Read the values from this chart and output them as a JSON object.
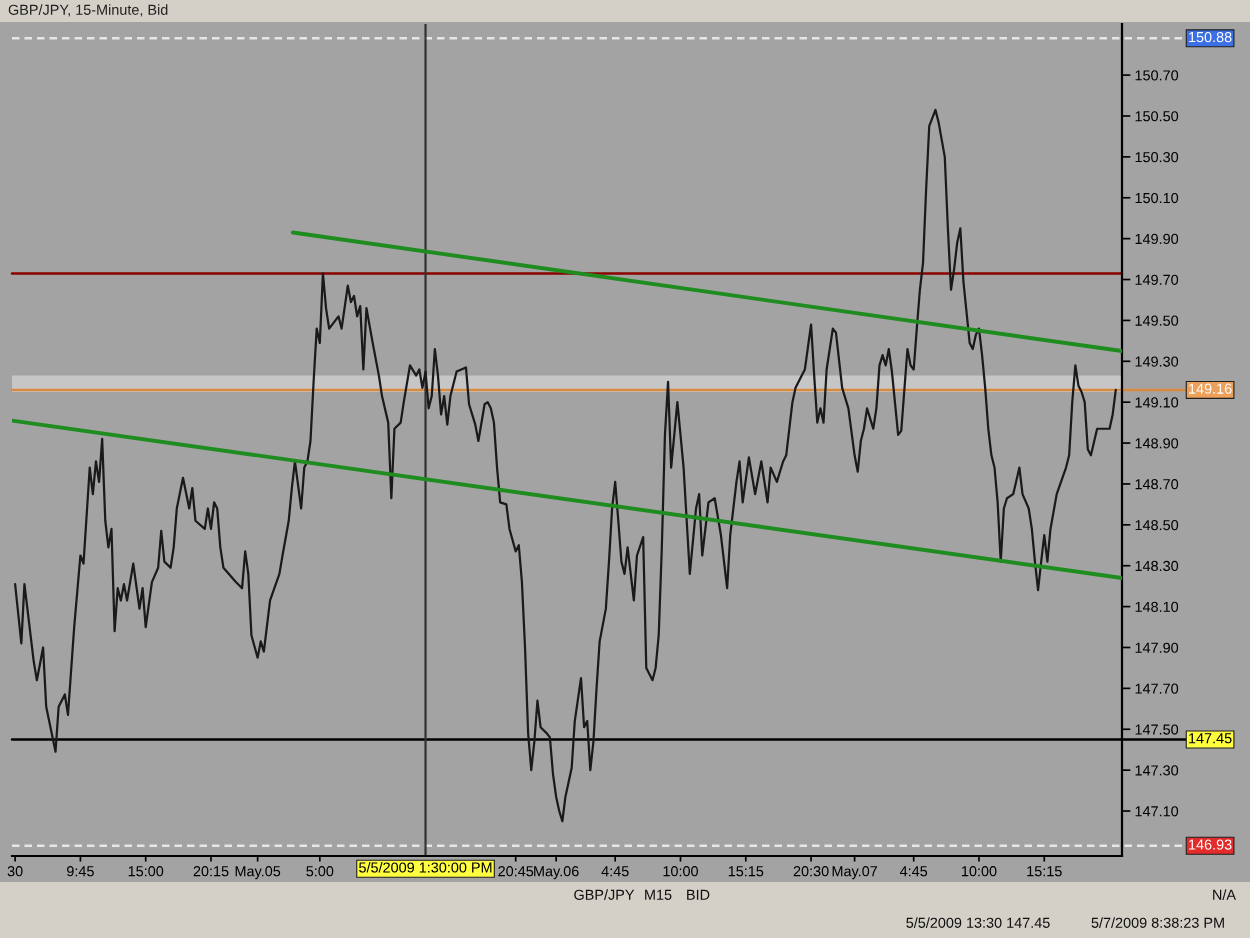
{
  "chart_data": {
    "type": "line",
    "title": "GBP/JPY, 15-Minute, Bid",
    "x": [
      "2009-05-04T04:30",
      "2009-05-04T05:00",
      "2009-05-04T05:15",
      "2009-05-04T06:00",
      "2009-05-04T06:15",
      "2009-05-04T06:45",
      "2009-05-04T07:00",
      "2009-05-04T07:45",
      "2009-05-04T08:00",
      "2009-05-04T08:30",
      "2009-05-04T08:45",
      "2009-05-04T09:15",
      "2009-05-04T09:45",
      "2009-05-04T10:00",
      "2009-05-04T10:30",
      "2009-05-04T10:45",
      "2009-05-04T11:00",
      "2009-05-04T11:15",
      "2009-05-04T11:30",
      "2009-05-04T11:45",
      "2009-05-04T12:00",
      "2009-05-04T12:15",
      "2009-05-04T12:30",
      "2009-05-04T12:45",
      "2009-05-04T13:00",
      "2009-05-04T13:15",
      "2009-05-04T13:30",
      "2009-05-04T14:00",
      "2009-05-04T14:30",
      "2009-05-04T14:45",
      "2009-05-04T15:00",
      "2009-05-04T15:30",
      "2009-05-04T16:00",
      "2009-05-04T16:15",
      "2009-05-04T16:30",
      "2009-05-04T17:00",
      "2009-05-04T17:15",
      "2009-05-04T17:30",
      "2009-05-04T18:00",
      "2009-05-04T18:30",
      "2009-05-04T18:45",
      "2009-05-04T19:00",
      "2009-05-04T19:45",
      "2009-05-04T20:00",
      "2009-05-04T20:15",
      "2009-05-04T20:30",
      "2009-05-04T20:45",
      "2009-05-04T21:00",
      "2009-05-04T21:15",
      "2009-05-04T22:15",
      "2009-05-04T22:45",
      "2009-05-04T23:00",
      "2009-05-04T23:15",
      "2009-05-04T23:30",
      "2009-05-05T00:00",
      "2009-05-05T00:15",
      "2009-05-05T00:30",
      "2009-05-05T01:00",
      "2009-05-05T01:45",
      "2009-05-05T02:00",
      "2009-05-05T02:30",
      "2009-05-05T02:45",
      "2009-05-05T03:00",
      "2009-05-05T03:30",
      "2009-05-05T03:45",
      "2009-05-05T04:00",
      "2009-05-05T04:15",
      "2009-05-05T04:30",
      "2009-05-05T04:45",
      "2009-05-05T05:00",
      "2009-05-05T05:15",
      "2009-05-05T05:30",
      "2009-05-05T05:45",
      "2009-05-05T06:30",
      "2009-05-05T06:45",
      "2009-05-05T07:15",
      "2009-05-05T07:30",
      "2009-05-05T07:45",
      "2009-05-05T08:00",
      "2009-05-05T08:15",
      "2009-05-05T08:30",
      "2009-05-05T08:45",
      "2009-05-05T09:15",
      "2009-05-05T09:45",
      "2009-05-05T10:00",
      "2009-05-05T10:30",
      "2009-05-05T10:45",
      "2009-05-05T11:00",
      "2009-05-05T11:30",
      "2009-05-05T11:45",
      "2009-05-05T12:15",
      "2009-05-05T12:45",
      "2009-05-05T13:00",
      "2009-05-05T13:15",
      "2009-05-05T13:30",
      "2009-05-05T13:45",
      "2009-05-05T14:00",
      "2009-05-05T14:15",
      "2009-05-05T14:30",
      "2009-05-05T14:45",
      "2009-05-05T15:00",
      "2009-05-05T15:15",
      "2009-05-05T15:30",
      "2009-05-05T16:00",
      "2009-05-05T16:45",
      "2009-05-05T17:00",
      "2009-05-05T17:30",
      "2009-05-05T17:45",
      "2009-05-05T18:15",
      "2009-05-05T18:30",
      "2009-05-05T18:45",
      "2009-05-05T19:00",
      "2009-05-05T19:15",
      "2009-05-05T19:30",
      "2009-05-05T20:00",
      "2009-05-05T20:15",
      "2009-05-05T20:45",
      "2009-05-05T21:00",
      "2009-05-05T21:15",
      "2009-05-05T21:30",
      "2009-05-05T21:45",
      "2009-05-05T22:00",
      "2009-05-05T22:15",
      "2009-05-05T22:30",
      "2009-05-05T22:45",
      "2009-05-05T23:15",
      "2009-05-05T23:30",
      "2009-05-05T23:45",
      "2009-05-06T00:00",
      "2009-05-06T00:15",
      "2009-05-06T00:30",
      "2009-05-06T00:45",
      "2009-05-06T01:15",
      "2009-05-06T01:30",
      "2009-05-06T02:00",
      "2009-05-06T02:15",
      "2009-05-06T02:30",
      "2009-05-06T02:45",
      "2009-05-06T03:00",
      "2009-05-06T03:15",
      "2009-05-06T03:30",
      "2009-05-06T04:00",
      "2009-05-06T04:15",
      "2009-05-06T04:30",
      "2009-05-06T04:45",
      "2009-05-06T05:00",
      "2009-05-06T05:15",
      "2009-05-06T05:30",
      "2009-05-06T05:45",
      "2009-05-06T06:15",
      "2009-05-06T06:30",
      "2009-05-06T07:00",
      "2009-05-06T07:15",
      "2009-05-06T07:45",
      "2009-05-06T08:00",
      "2009-05-06T08:15",
      "2009-05-06T08:30",
      "2009-05-06T08:45",
      "2009-05-06T09:00",
      "2009-05-06T09:15",
      "2009-05-06T09:45",
      "2009-05-06T10:15",
      "2009-05-06T10:45",
      "2009-05-06T11:15",
      "2009-05-06T11:30",
      "2009-05-06T11:45",
      "2009-05-06T12:15",
      "2009-05-06T12:45",
      "2009-05-06T13:15",
      "2009-05-06T13:45",
      "2009-05-06T14:00",
      "2009-05-06T14:30",
      "2009-05-06T14:45",
      "2009-05-06T15:00",
      "2009-05-06T15:30",
      "2009-05-06T16:00",
      "2009-05-06T16:30",
      "2009-05-06T17:00",
      "2009-05-06T17:15",
      "2009-05-06T17:45",
      "2009-05-06T18:15",
      "2009-05-06T18:30",
      "2009-05-06T19:00",
      "2009-05-06T19:15",
      "2009-05-06T19:45",
      "2009-05-06T20:00",
      "2009-05-06T20:30",
      "2009-05-06T20:45",
      "2009-05-06T21:00",
      "2009-05-06T21:15",
      "2009-05-06T21:30",
      "2009-05-06T21:45",
      "2009-05-06T22:15",
      "2009-05-06T22:30",
      "2009-05-06T23:00",
      "2009-05-06T23:30",
      "2009-05-07T00:00",
      "2009-05-07T00:15",
      "2009-05-07T00:30",
      "2009-05-07T00:45",
      "2009-05-07T01:00",
      "2009-05-07T01:30",
      "2009-05-07T01:45",
      "2009-05-07T02:00",
      "2009-05-07T02:15",
      "2009-05-07T02:30",
      "2009-05-07T02:45",
      "2009-05-07T03:00",
      "2009-05-07T03:30",
      "2009-05-07T03:45",
      "2009-05-07T04:15",
      "2009-05-07T04:30",
      "2009-05-07T04:45",
      "2009-05-07T05:00",
      "2009-05-07T05:15",
      "2009-05-07T05:30",
      "2009-05-07T05:45",
      "2009-05-07T06:00",
      "2009-05-07T06:30",
      "2009-05-07T06:45",
      "2009-05-07T07:15",
      "2009-05-07T07:30",
      "2009-05-07T07:45",
      "2009-05-07T08:00",
      "2009-05-07T08:15",
      "2009-05-07T08:30",
      "2009-05-07T08:45",
      "2009-05-07T09:00",
      "2009-05-07T09:15",
      "2009-05-07T09:30",
      "2009-05-07T09:45",
      "2009-05-07T10:00",
      "2009-05-07T10:15",
      "2009-05-07T10:30",
      "2009-05-07T10:45",
      "2009-05-07T11:00",
      "2009-05-07T11:15",
      "2009-05-07T11:30",
      "2009-05-07T11:45",
      "2009-05-07T12:00",
      "2009-05-07T12:15",
      "2009-05-07T12:45",
      "2009-05-07T13:15",
      "2009-05-07T13:30",
      "2009-05-07T14:00",
      "2009-05-07T14:15",
      "2009-05-07T14:30",
      "2009-05-07T14:45",
      "2009-05-07T15:00",
      "2009-05-07T15:15",
      "2009-05-07T15:30",
      "2009-05-07T15:45",
      "2009-05-07T16:15",
      "2009-05-07T17:00",
      "2009-05-07T17:15",
      "2009-05-07T17:30",
      "2009-05-07T17:45",
      "2009-05-07T18:00",
      "2009-05-07T18:15",
      "2009-05-07T18:30",
      "2009-05-07T18:45",
      "2009-05-07T19:00",
      "2009-05-07T19:30",
      "2009-05-07T20:15",
      "2009-05-07T20:30",
      "2009-05-07T20:45",
      "2009-05-07T21:00"
    ],
    "series": [
      {
        "color": "#1a1a1a",
        "values": [
          148.21,
          147.92,
          148.21,
          147.83,
          147.74,
          147.9,
          147.61,
          147.39,
          147.61,
          147.67,
          147.57,
          148.0,
          148.35,
          148.31,
          148.78,
          148.65,
          148.81,
          148.71,
          148.92,
          148.52,
          148.39,
          148.48,
          147.98,
          148.19,
          148.13,
          148.21,
          148.13,
          148.31,
          148.09,
          148.19,
          148.0,
          148.22,
          148.29,
          148.47,
          148.32,
          148.29,
          148.39,
          148.58,
          148.73,
          148.58,
          148.68,
          148.52,
          148.48,
          148.58,
          148.48,
          148.61,
          148.58,
          148.39,
          148.29,
          148.22,
          148.19,
          148.37,
          148.26,
          147.96,
          147.85,
          147.93,
          147.88,
          148.13,
          148.26,
          148.35,
          148.52,
          148.68,
          148.81,
          148.58,
          148.78,
          148.81,
          148.91,
          149.2,
          149.46,
          149.39,
          149.73,
          149.56,
          149.46,
          149.52,
          149.46,
          149.67,
          149.59,
          149.62,
          149.52,
          149.57,
          149.26,
          149.56,
          149.39,
          149.23,
          149.13,
          149.0,
          148.63,
          148.97,
          149.0,
          149.1,
          149.28,
          149.23,
          149.26,
          149.17,
          149.25,
          149.07,
          149.13,
          149.36,
          149.23,
          149.04,
          149.13,
          148.99,
          149.13,
          149.25,
          149.27,
          149.09,
          148.99,
          148.91,
          149.09,
          149.1,
          149.07,
          149.0,
          148.78,
          148.61,
          148.6,
          148.48,
          148.37,
          148.4,
          148.22,
          147.9,
          147.48,
          147.3,
          147.44,
          147.64,
          147.51,
          147.48,
          147.46,
          147.28,
          147.17,
          147.1,
          147.05,
          147.17,
          147.31,
          147.54,
          147.75,
          147.51,
          147.54,
          147.3,
          147.44,
          147.7,
          147.93,
          148.09,
          148.32,
          148.58,
          148.71,
          148.52,
          148.32,
          148.26,
          148.39,
          148.13,
          148.35,
          148.44,
          147.8,
          147.74,
          147.8,
          147.96,
          148.39,
          148.94,
          149.2,
          148.78,
          149.1,
          148.78,
          148.26,
          148.58,
          148.65,
          148.35,
          148.61,
          148.63,
          148.45,
          148.19,
          148.45,
          148.71,
          148.81,
          148.61,
          148.83,
          148.65,
          148.81,
          148.61,
          148.78,
          148.71,
          148.81,
          148.84,
          149.1,
          149.17,
          149.23,
          149.26,
          149.48,
          149.23,
          149.0,
          149.07,
          149.0,
          149.26,
          149.46,
          149.44,
          149.17,
          149.07,
          148.84,
          148.76,
          148.91,
          148.97,
          149.07,
          148.97,
          149.07,
          149.28,
          149.33,
          149.28,
          149.36,
          149.25,
          148.94,
          148.96,
          149.36,
          149.28,
          149.26,
          149.46,
          149.65,
          149.78,
          150.14,
          150.45,
          150.53,
          150.47,
          150.3,
          149.95,
          149.65,
          149.75,
          149.88,
          149.95,
          149.69,
          149.54,
          149.39,
          149.36,
          149.43,
          149.46,
          149.33,
          149.17,
          148.97,
          148.84,
          148.78,
          148.61,
          148.32,
          148.58,
          148.63,
          148.65,
          148.78,
          148.65,
          148.58,
          148.48,
          148.32,
          148.18,
          148.32,
          148.45,
          148.32,
          148.48,
          148.65,
          148.78,
          148.84,
          149.1,
          149.28,
          149.18,
          149.15,
          149.1,
          148.87,
          148.84,
          148.97,
          148.97,
          148.97,
          149.04,
          149.16
        ]
      },
      {
        "type": "line",
        "color": "#1e8c1e",
        "x": [
          "2009-05-05T02:50",
          "2009-05-07T21:30"
        ],
        "values": [
          149.93,
          149.35
        ]
      },
      {
        "type": "line",
        "color": "#1e8c1e",
        "x": [
          "2009-05-04T04:15",
          "2009-05-07T21:30"
        ],
        "values": [
          149.01,
          148.24
        ]
      }
    ],
    "xlim": [
      "2009-05-04T04:15",
      "2009-05-07T21:30"
    ],
    "xticks": [
      {
        "value": "2009-05-04T04:30",
        "label": "30"
      },
      {
        "value": "2009-05-04T09:45",
        "label": "9:45"
      },
      {
        "value": "2009-05-04T15:00",
        "label": "15:00"
      },
      {
        "value": "2009-05-04T20:15",
        "label": "20:15"
      },
      {
        "value": "2009-05-05T00:00",
        "label": "May.05"
      },
      {
        "value": "2009-05-05T05:00",
        "label": "5:00"
      },
      {
        "value": "2009-05-05T20:45",
        "label": "20:45"
      },
      {
        "value": "2009-05-06T00:00",
        "label": "May.06"
      },
      {
        "value": "2009-05-06T04:45",
        "label": "4:45"
      },
      {
        "value": "2009-05-06T10:00",
        "label": "10:00"
      },
      {
        "value": "2009-05-06T15:15",
        "label": "15:15"
      },
      {
        "value": "2009-05-06T20:30",
        "label": "20:30"
      },
      {
        "value": "2009-05-07T00:00",
        "label": "May.07"
      },
      {
        "value": "2009-05-07T04:45",
        "label": "4:45"
      },
      {
        "value": "2009-05-07T10:00",
        "label": "10:00"
      },
      {
        "value": "2009-05-07T15:15",
        "label": "15:15"
      }
    ],
    "ylim": [
      146.88,
      150.95
    ],
    "yticks": [
      {
        "value": 147.1,
        "label": "147.10"
      },
      {
        "value": 147.3,
        "label": "147.30"
      },
      {
        "value": 147.5,
        "label": "147.50"
      },
      {
        "value": 147.7,
        "label": "147.70"
      },
      {
        "value": 147.9,
        "label": "147.90"
      },
      {
        "value": 148.1,
        "label": "148.10"
      },
      {
        "value": 148.3,
        "label": "148.30"
      },
      {
        "value": 148.5,
        "label": "148.50"
      },
      {
        "value": 148.7,
        "label": "148.70"
      },
      {
        "value": 148.9,
        "label": "148.90"
      },
      {
        "value": 149.1,
        "label": "149.10"
      },
      {
        "value": 149.3,
        "label": "149.30"
      },
      {
        "value": 149.5,
        "label": "149.50"
      },
      {
        "value": 149.7,
        "label": "149.70"
      },
      {
        "value": 149.9,
        "label": "149.90"
      },
      {
        "value": 150.1,
        "label": "150.10"
      },
      {
        "value": 150.3,
        "label": "150.30"
      },
      {
        "value": 150.5,
        "label": "150.50"
      },
      {
        "value": 150.7,
        "label": "150.70"
      }
    ],
    "ref_lines": [
      {
        "axis": "y",
        "value": 150.88,
        "label": "150.88",
        "color": "#e6e6e6",
        "line_style": "dashed"
      },
      {
        "axis": "y",
        "value": 149.73,
        "color": "#8b0000"
      },
      {
        "axis": "y",
        "value": 149.16,
        "label": "149.16",
        "color": "#d98a3d"
      },
      {
        "axis": "y",
        "value": 147.45,
        "label": "147.45",
        "color": "#000000"
      },
      {
        "axis": "y",
        "value": 146.93,
        "label": "146.93",
        "color": "#e6e6e6",
        "line_style": "dashed"
      },
      {
        "axis": "x",
        "value": "2009-05-05T13:30",
        "label": "5/5/2009 1:30:00 PM",
        "color": "#333333"
      }
    ],
    "bands": [
      {
        "axis": "y",
        "from": 149.15,
        "to": 149.23,
        "color": "#c6c6c6"
      }
    ],
    "annotations": [
      "GBP/JPY",
      "M15",
      "BID",
      "N/A",
      "5/5/2009 13:30 147.45",
      "5/7/2009 8:38:23 PM"
    ]
  }
}
